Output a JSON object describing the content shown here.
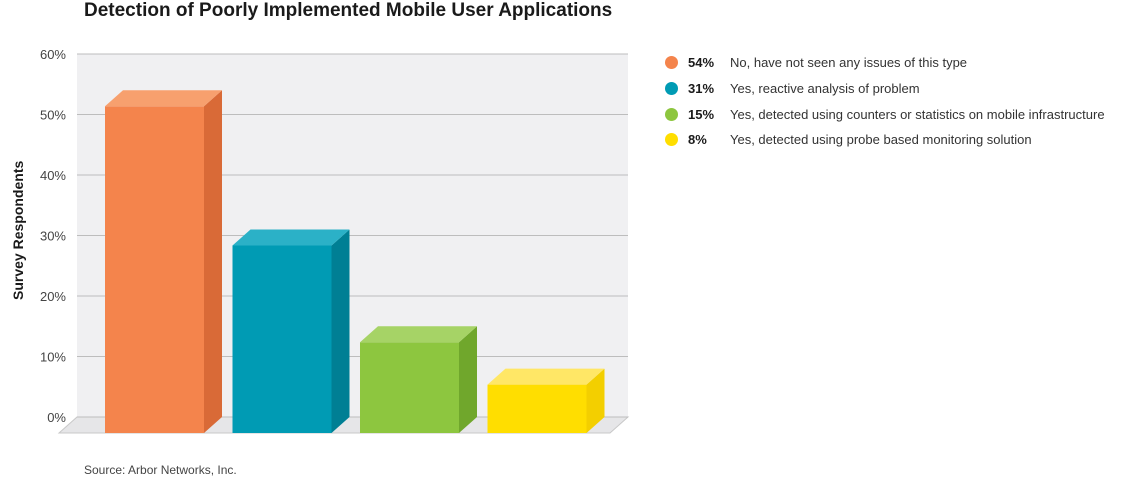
{
  "chart_data": {
    "type": "bar",
    "title": "Detection of Poorly Implemented Mobile User Applications",
    "ylabel": "Survey Respondents",
    "ylim": [
      0,
      60
    ],
    "ytick_labels": [
      "0%",
      "10%",
      "20%",
      "30%",
      "40%",
      "50%",
      "60%"
    ],
    "categories": [
      "No, have not seen any issues of this type",
      "Yes, reactive analysis of problem",
      "Yes, detected using counters or statistics on mobile infrastructure",
      "Yes, detected using probe based monitoring solution"
    ],
    "values": [
      54,
      31,
      15,
      8
    ],
    "value_labels": [
      "54%",
      "31%",
      "15%",
      "8%"
    ],
    "colors": [
      "#f4844c",
      "#009bb4",
      "#8dc63f",
      "#ffde00"
    ],
    "side_colors": [
      "#d96a37",
      "#007f94",
      "#70a72c",
      "#f3cf00"
    ],
    "top_colors": [
      "#f7a06e",
      "#2bb1c7",
      "#a6d366",
      "#ffe766"
    ],
    "grid": true,
    "legend_position": "right",
    "source": "Source: Arbor Networks, Inc."
  }
}
